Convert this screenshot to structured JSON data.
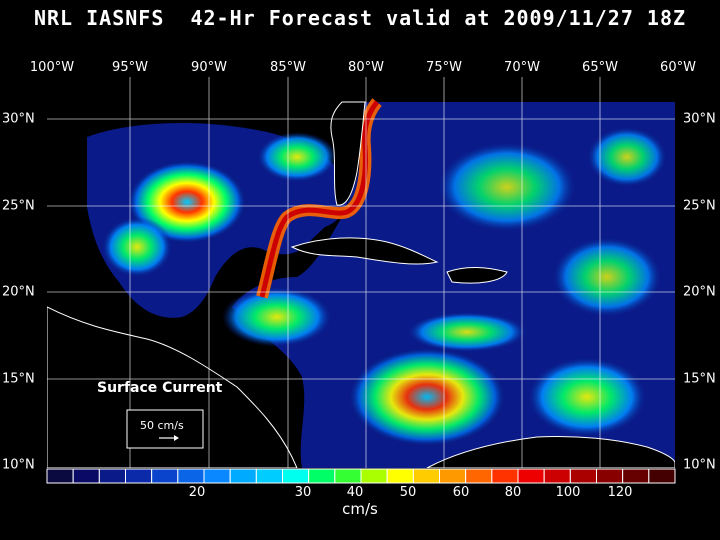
{
  "title": "NRL IASNFS  42-Hr Forecast valid at 2009/11/27 18Z",
  "longitude_labels": [
    "100°W",
    "95°W",
    "90°W",
    "85°W",
    "80°W",
    "75°W",
    "70°W",
    "65°W",
    "60°W"
  ],
  "latitude_labels": [
    "30°N",
    "25°N",
    "20°N",
    "15°N",
    "10°N"
  ],
  "legend": {
    "field": "Surface Current",
    "reference_vector": "50 cm/s"
  },
  "colorbar": {
    "tick_labels": [
      "20",
      "30",
      "40",
      "50",
      "60",
      "80",
      "100",
      "120"
    ],
    "units": "cm/s",
    "colors": [
      "#0a0a40",
      "#0a0a66",
      "#0a1a88",
      "#0a2aaa",
      "#0a44cc",
      "#0a66e6",
      "#0a88ff",
      "#00aaff",
      "#00ccff",
      "#00ffee",
      "#00ff66",
      "#33ff33",
      "#aaff00",
      "#ffff00",
      "#ffcc00",
      "#ff9900",
      "#ff6600",
      "#ff3300",
      "#ee0000",
      "#cc0000",
      "#aa0000",
      "#880000",
      "#660000",
      "#440000"
    ]
  },
  "colors": {
    "background": "#000000",
    "land": "#000000",
    "coastline": "#ffffff",
    "grid": "#ffffff",
    "ocean_low": "#0a0a60",
    "current_core": "#cc0000"
  }
}
